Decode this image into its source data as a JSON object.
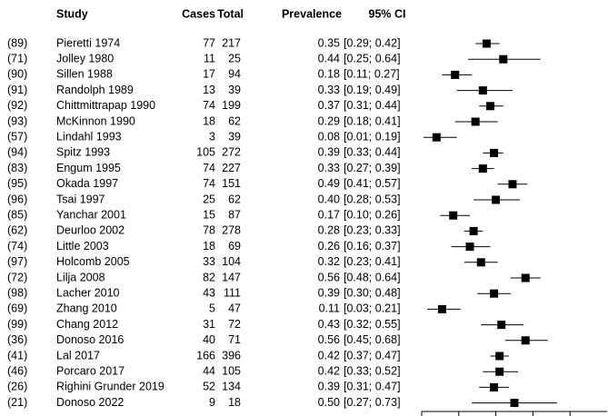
{
  "chart_data": {
    "type": "forest",
    "headers": {
      "study": "Study",
      "cases": "Cases",
      "total": "Total",
      "prevalence": "Prevalence",
      "ci": "95% CI"
    },
    "refs": [
      "(89)",
      "(71)",
      "(90)",
      "(91)",
      "(92)",
      "(93)",
      "(57)",
      "(94)",
      "(83)",
      "(95)",
      "(96)",
      "(85)",
      "(62)",
      "(74)",
      "(97)",
      "(72)",
      "(98)",
      "(69)",
      "(99)",
      "(36)",
      "(41)",
      "(46)",
      "(26)",
      "(21)"
    ],
    "studies": [
      "Pieretti 1974",
      "Jolley 1980",
      "Sillen 1988",
      "Randolph 1989",
      "Chittmittrapap 1990",
      "McKinnon 1990",
      "Lindahl 1993",
      "Spitz 1993",
      "Engum 1995",
      "Okada 1997",
      "Tsai 1997",
      "Yanchar 2001",
      "Deurloo 2002",
      "Little 2003",
      "Holcomb 2005",
      "Lilja 2008",
      "Lacher 2010",
      "Zhang 2010",
      "Chang  2012",
      "Donoso 2016",
      "Lal 2017",
      "Porcaro 2017",
      "Righini Grunder 2019",
      "Donoso 2022"
    ],
    "cases": [
      77,
      11,
      17,
      13,
      74,
      18,
      3,
      105,
      74,
      74,
      25,
      15,
      78,
      18,
      33,
      82,
      43,
      5,
      31,
      40,
      166,
      44,
      52,
      9
    ],
    "totals": [
      217,
      25,
      94,
      39,
      199,
      62,
      39,
      272,
      227,
      151,
      62,
      87,
      278,
      69,
      104,
      147,
      111,
      47,
      72,
      71,
      396,
      105,
      134,
      18
    ],
    "values": [
      0.35,
      0.44,
      0.18,
      0.33,
      0.37,
      0.29,
      0.08,
      0.39,
      0.33,
      0.49,
      0.4,
      0.17,
      0.28,
      0.26,
      0.32,
      0.56,
      0.39,
      0.11,
      0.43,
      0.56,
      0.42,
      0.42,
      0.39,
      0.5
    ],
    "value_labels": [
      "0.35",
      "0.44",
      "0.18",
      "0.33",
      "0.37",
      "0.29",
      "0.08",
      "0.39",
      "0.33",
      "0.49",
      "0.40",
      "0.17",
      "0.28",
      "0.26",
      "0.32",
      "0.56",
      "0.39",
      "0.11",
      "0.43",
      "0.56",
      "0.42",
      "0.42",
      "0.39",
      "0.50"
    ],
    "ci_lower": [
      0.29,
      0.25,
      0.11,
      0.19,
      0.31,
      0.18,
      0.01,
      0.33,
      0.27,
      0.41,
      0.28,
      0.1,
      0.23,
      0.16,
      0.23,
      0.48,
      0.3,
      0.03,
      0.32,
      0.45,
      0.37,
      0.33,
      0.31,
      0.27
    ],
    "ci_upper": [
      0.42,
      0.64,
      0.27,
      0.49,
      0.44,
      0.41,
      0.19,
      0.44,
      0.39,
      0.57,
      0.53,
      0.26,
      0.33,
      0.37,
      0.41,
      0.64,
      0.48,
      0.21,
      0.55,
      0.68,
      0.47,
      0.52,
      0.47,
      0.73
    ],
    "ci_labels": [
      "[0.29; 0.42]",
      "[0.25; 0.64]",
      "[0.11; 0.27]",
      "[0.19; 0.49]",
      "[0.31; 0.44]",
      "[0.18; 0.41]",
      "[0.01; 0.19]",
      "[0.33; 0.44]",
      "[0.27; 0.39]",
      "[0.41; 0.57]",
      "[0.28; 0.53]",
      "[0.10; 0.26]",
      "[0.23; 0.33]",
      "[0.16; 0.37]",
      "[0.23; 0.41]",
      "[0.48; 0.64]",
      "[0.30; 0.48]",
      "[0.03; 0.21]",
      "[0.32; 0.55]",
      "[0.45; 0.68]",
      "[0.37; 0.47]",
      "[0.33; 0.52]",
      "[0.31; 0.47]",
      "[0.27; 0.73]"
    ],
    "xlim": [
      0,
      1
    ],
    "xticks": [
      0,
      0.2,
      0.4,
      0.6,
      0.8
    ],
    "color": "#000000"
  }
}
